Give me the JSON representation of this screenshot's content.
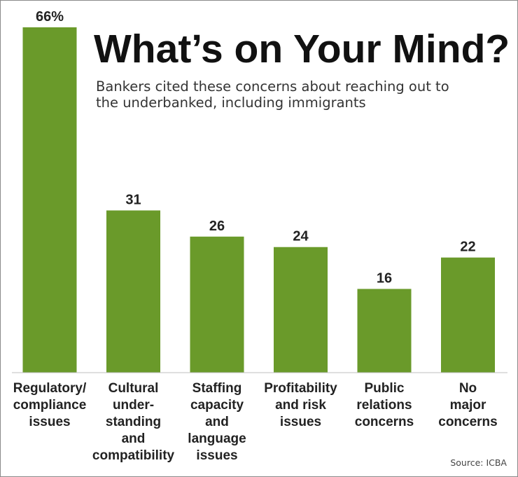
{
  "chart_data": {
    "type": "bar",
    "title": "What’s on Your Mind?",
    "subtitle_lines": [
      "Bankers cited these concerns about reaching out to",
      "the underbanked, including immigrants"
    ],
    "categories": [
      [
        "Regulatory/",
        "compliance",
        "issues"
      ],
      [
        "Cultural",
        "under-",
        "standing",
        "and",
        "compatibility"
      ],
      [
        "Staffing",
        "capacity",
        "and",
        "language",
        "issues"
      ],
      [
        "Profitability",
        "and risk",
        "issues"
      ],
      [
        "Public",
        "relations",
        "concerns"
      ],
      [
        "No",
        "major",
        "concerns"
      ]
    ],
    "values": [
      66,
      31,
      26,
      24,
      16,
      22
    ],
    "value_labels": [
      "66%",
      "31",
      "26",
      "24",
      "16",
      "22"
    ],
    "ylim": [
      0,
      66
    ],
    "grid": false,
    "bar_color": "#6a9a2a",
    "source": "Source: ICBA"
  }
}
